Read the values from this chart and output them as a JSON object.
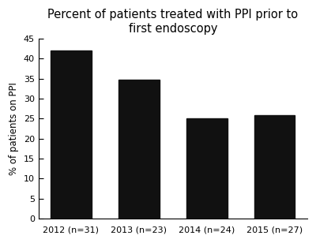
{
  "title": "Percent of patients treated with PPI prior to\nfirst endoscopy",
  "categories": [
    "2012 (n=31)",
    "2013 (n=23)",
    "2014 (n=24)",
    "2015 (n=27)"
  ],
  "values": [
    41.94,
    34.78,
    25.0,
    25.93
  ],
  "bar_color": "#111111",
  "ylabel": "% of patients on PPI",
  "ylim": [
    0,
    45
  ],
  "yticks": [
    0,
    5,
    10,
    15,
    20,
    25,
    30,
    35,
    40,
    45
  ],
  "title_fontsize": 10.5,
  "label_fontsize": 8.5,
  "tick_fontsize": 8,
  "background_color": "#ffffff",
  "bar_width": 0.6
}
